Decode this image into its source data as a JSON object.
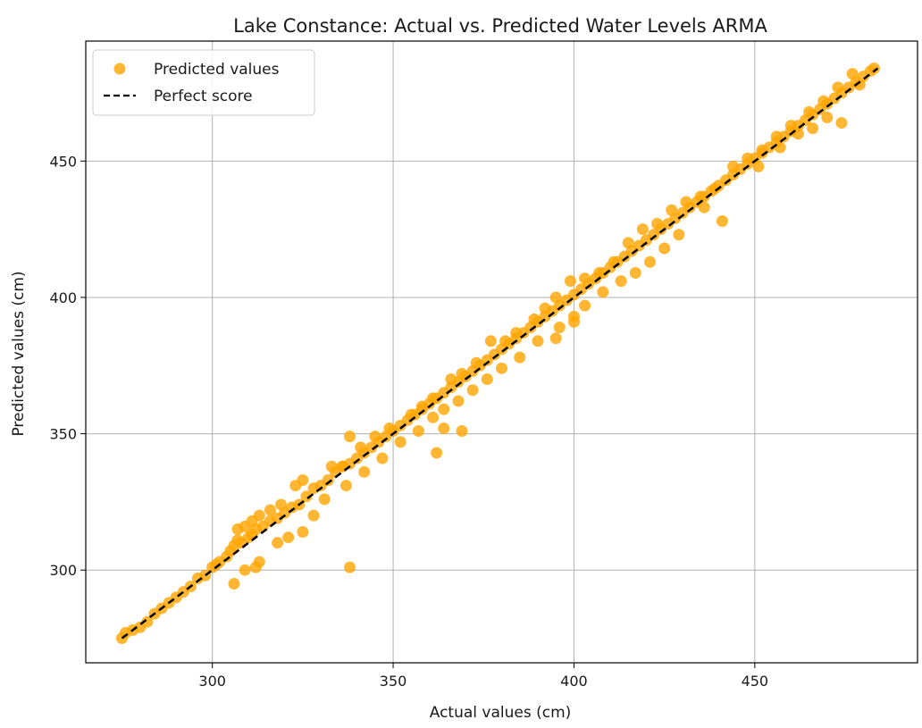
{
  "chart_data": {
    "type": "scatter",
    "title": "Lake Constance: Actual vs. Predicted Water Levels ARMA",
    "xlabel": "Actual values (cm)",
    "ylabel": "Predicted values (cm)",
    "xlim": [
      265,
      495
    ],
    "ylim": [
      266,
      494
    ],
    "xticks": [
      300,
      350,
      400,
      450
    ],
    "yticks": [
      300,
      350,
      400,
      450
    ],
    "grid": true,
    "legend_position": "top-left",
    "series": [
      {
        "name": "Predicted values",
        "kind": "scatter",
        "color": "#FFA500",
        "points": [
          [
            275,
            275
          ],
          [
            276,
            277
          ],
          [
            278,
            278
          ],
          [
            280,
            279
          ],
          [
            282,
            281
          ],
          [
            284,
            284
          ],
          [
            286,
            286
          ],
          [
            288,
            288
          ],
          [
            290,
            290
          ],
          [
            292,
            292
          ],
          [
            294,
            294
          ],
          [
            296,
            297
          ],
          [
            298,
            298
          ],
          [
            300,
            301
          ],
          [
            301,
            302
          ],
          [
            302,
            303
          ],
          [
            304,
            305
          ],
          [
            305,
            307
          ],
          [
            306,
            309
          ],
          [
            307,
            311
          ],
          [
            308,
            310
          ],
          [
            310,
            312
          ],
          [
            311,
            313
          ],
          [
            312,
            315
          ],
          [
            314,
            316
          ],
          [
            316,
            318
          ],
          [
            318,
            319
          ],
          [
            320,
            321
          ],
          [
            322,
            323
          ],
          [
            324,
            324
          ],
          [
            326,
            327
          ],
          [
            328,
            330
          ],
          [
            330,
            331
          ],
          [
            332,
            333
          ],
          [
            334,
            336
          ],
          [
            336,
            338
          ],
          [
            338,
            339
          ],
          [
            340,
            341
          ],
          [
            342,
            343
          ],
          [
            344,
            345
          ],
          [
            346,
            347
          ],
          [
            348,
            349
          ],
          [
            350,
            351
          ],
          [
            352,
            353
          ],
          [
            354,
            355
          ],
          [
            356,
            357
          ],
          [
            358,
            359
          ],
          [
            360,
            361
          ],
          [
            362,
            363
          ],
          [
            364,
            365
          ],
          [
            366,
            367
          ],
          [
            368,
            369
          ],
          [
            370,
            371
          ],
          [
            372,
            373
          ],
          [
            374,
            375
          ],
          [
            376,
            377
          ],
          [
            378,
            379
          ],
          [
            380,
            381
          ],
          [
            382,
            383
          ],
          [
            384,
            385
          ],
          [
            386,
            387
          ],
          [
            388,
            389
          ],
          [
            390,
            391
          ],
          [
            392,
            393
          ],
          [
            394,
            395
          ],
          [
            396,
            397
          ],
          [
            398,
            399
          ],
          [
            400,
            401
          ],
          [
            402,
            403
          ],
          [
            404,
            405
          ],
          [
            406,
            407
          ],
          [
            408,
            409
          ],
          [
            410,
            411
          ],
          [
            412,
            413
          ],
          [
            414,
            415
          ],
          [
            416,
            417
          ],
          [
            418,
            419
          ],
          [
            420,
            421
          ],
          [
            422,
            423
          ],
          [
            424,
            425
          ],
          [
            426,
            427
          ],
          [
            428,
            429
          ],
          [
            430,
            431
          ],
          [
            432,
            433
          ],
          [
            434,
            435
          ],
          [
            436,
            437
          ],
          [
            438,
            439
          ],
          [
            440,
            441
          ],
          [
            442,
            443
          ],
          [
            444,
            445
          ],
          [
            446,
            447
          ],
          [
            448,
            449
          ],
          [
            450,
            451
          ],
          [
            452,
            453
          ],
          [
            454,
            455
          ],
          [
            456,
            457
          ],
          [
            458,
            459
          ],
          [
            460,
            461
          ],
          [
            462,
            463
          ],
          [
            464,
            465
          ],
          [
            466,
            467
          ],
          [
            468,
            469
          ],
          [
            470,
            471
          ],
          [
            472,
            473
          ],
          [
            474,
            475
          ],
          [
            476,
            477
          ],
          [
            478,
            479
          ],
          [
            480,
            481
          ],
          [
            482,
            483
          ],
          [
            483,
            484
          ],
          [
            307,
            315
          ],
          [
            309,
            316
          ],
          [
            311,
            318
          ],
          [
            313,
            320
          ],
          [
            316,
            322
          ],
          [
            319,
            324
          ],
          [
            323,
            331
          ],
          [
            325,
            333
          ],
          [
            333,
            338
          ],
          [
            336,
            338
          ],
          [
            341,
            345
          ],
          [
            345,
            349
          ],
          [
            349,
            352
          ],
          [
            355,
            357
          ],
          [
            358,
            360
          ],
          [
            361,
            363
          ],
          [
            366,
            370
          ],
          [
            369,
            372
          ],
          [
            373,
            376
          ],
          [
            377,
            384
          ],
          [
            381,
            384
          ],
          [
            384,
            387
          ],
          [
            389,
            392
          ],
          [
            392,
            396
          ],
          [
            395,
            400
          ],
          [
            399,
            406
          ],
          [
            403,
            407
          ],
          [
            407,
            409
          ],
          [
            411,
            413
          ],
          [
            415,
            420
          ],
          [
            419,
            425
          ],
          [
            423,
            427
          ],
          [
            427,
            432
          ],
          [
            431,
            435
          ],
          [
            435,
            437
          ],
          [
            439,
            440
          ],
          [
            444,
            448
          ],
          [
            448,
            451
          ],
          [
            452,
            454
          ],
          [
            456,
            459
          ],
          [
            460,
            463
          ],
          [
            465,
            468
          ],
          [
            469,
            472
          ],
          [
            473,
            477
          ],
          [
            477,
            482
          ],
          [
            306,
            295
          ],
          [
            309,
            300
          ],
          [
            312,
            301
          ],
          [
            313,
            303
          ],
          [
            318,
            310
          ],
          [
            321,
            312
          ],
          [
            325,
            314
          ],
          [
            328,
            320
          ],
          [
            331,
            326
          ],
          [
            337,
            331
          ],
          [
            342,
            336
          ],
          [
            347,
            341
          ],
          [
            352,
            347
          ],
          [
            357,
            351
          ],
          [
            361,
            356
          ],
          [
            364,
            359
          ],
          [
            368,
            362
          ],
          [
            372,
            366
          ],
          [
            376,
            370
          ],
          [
            380,
            374
          ],
          [
            385,
            378
          ],
          [
            390,
            384
          ],
          [
            395,
            385
          ],
          [
            400,
            391
          ],
          [
            403,
            397
          ],
          [
            408,
            402
          ],
          [
            413,
            406
          ],
          [
            417,
            409
          ],
          [
            421,
            413
          ],
          [
            425,
            418
          ],
          [
            429,
            423
          ],
          [
            436,
            433
          ],
          [
            441,
            428
          ],
          [
            451,
            448
          ],
          [
            457,
            455
          ],
          [
            462,
            460
          ],
          [
            466,
            462
          ],
          [
            470,
            466
          ],
          [
            474,
            464
          ],
          [
            479,
            478
          ],
          [
            338,
            301
          ],
          [
            338,
            349
          ],
          [
            362,
            343
          ],
          [
            364,
            352
          ],
          [
            369,
            351
          ],
          [
            400,
            393
          ],
          [
            396,
            389
          ]
        ]
      },
      {
        "name": "Perfect score",
        "kind": "line",
        "color": "#000000",
        "style": "dashed",
        "points": [
          [
            275,
            275
          ],
          [
            484,
            484
          ]
        ]
      }
    ]
  }
}
